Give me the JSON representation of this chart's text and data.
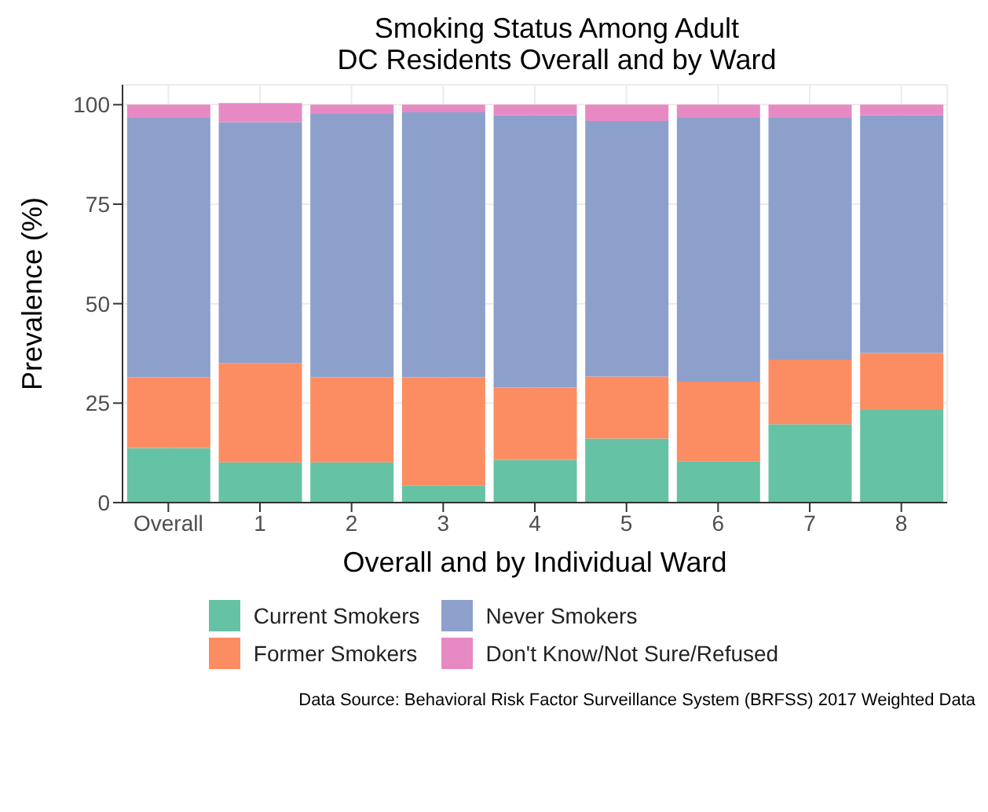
{
  "chart_data": {
    "type": "bar",
    "title": "Smoking Status Among Adult\nDC Residents Overall and by Ward",
    "xlabel": "Overall and by Individual Ward",
    "ylabel": "Prevalence (%)",
    "categories": [
      "Overall",
      "1",
      "2",
      "3",
      "4",
      "5",
      "6",
      "7",
      "8"
    ],
    "stacked": true,
    "ylim": [
      0,
      105
    ],
    "yticks": [
      0,
      25,
      50,
      75,
      100
    ],
    "grid": true,
    "legend": "bottom",
    "series": [
      {
        "name": "Current Smokers",
        "color": "#66c2a5",
        "values": [
          13.7,
          10.1,
          10.1,
          4.3,
          10.7,
          16.1,
          10.4,
          19.7,
          23.3
        ]
      },
      {
        "name": "Former Smokers",
        "color": "#fc8d62",
        "values": [
          17.8,
          25.0,
          21.4,
          27.2,
          18.2,
          15.6,
          20.0,
          16.2,
          14.3
        ]
      },
      {
        "name": "Never Smokers",
        "color": "#8da0cb",
        "values": [
          65.2,
          60.5,
          66.2,
          66.6,
          68.5,
          64.2,
          66.3,
          60.8,
          59.8
        ]
      },
      {
        "name": "Don't Know/Not Sure/Refused",
        "color": "#e78ac3",
        "values": [
          3.3,
          4.8,
          2.3,
          1.9,
          2.6,
          4.1,
          3.3,
          3.3,
          2.6
        ]
      }
    ],
    "annotations": [
      "Data Source: Behavioral Risk Factor Surveillance System (BRFSS) 2017 Weighted Data"
    ]
  }
}
